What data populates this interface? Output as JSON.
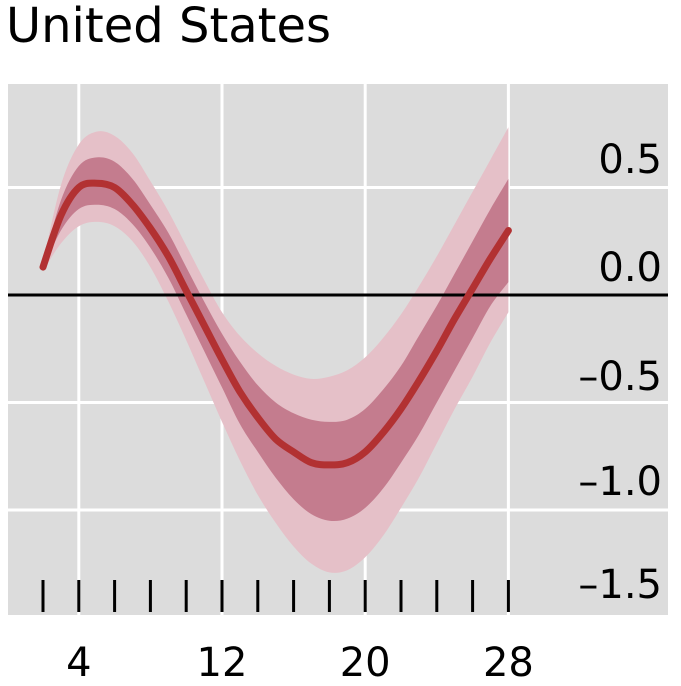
{
  "chart_data": {
    "type": "line",
    "title": "United States",
    "xlabel": "",
    "ylabel": "",
    "xlim": [
      0,
      32
    ],
    "ylim": [
      -1.5,
      0.85
    ],
    "x_ticks": [
      2,
      4,
      6,
      8,
      10,
      12,
      14,
      16,
      18,
      20,
      22,
      24,
      26,
      28
    ],
    "x_tick_labels": [
      {
        "value": 4,
        "label": "4"
      },
      {
        "value": 12,
        "label": "12"
      },
      {
        "value": 20,
        "label": "20"
      },
      {
        "value": 28,
        "label": "28"
      }
    ],
    "y_tick_labels": [
      {
        "value": 0.5,
        "label": "0.5"
      },
      {
        "value": 0.0,
        "label": "0.0"
      },
      {
        "value": -0.5,
        "label": "–0.5"
      },
      {
        "value": -1.0,
        "label": "–1.0"
      },
      {
        "value": -1.5,
        "label": "–1.5"
      }
    ],
    "grid": true,
    "zero_line": true,
    "series": [
      {
        "x": [
          2,
          3,
          4,
          5,
          6,
          7,
          8,
          9,
          10,
          11,
          12,
          13,
          14,
          15,
          16,
          17,
          18,
          19,
          20,
          21,
          22,
          23,
          24,
          25,
          26,
          27,
          28
        ],
        "values": [
          0.13,
          0.37,
          0.5,
          0.52,
          0.5,
          0.42,
          0.31,
          0.18,
          0.02,
          -0.14,
          -0.3,
          -0.45,
          -0.57,
          -0.67,
          -0.73,
          -0.78,
          -0.79,
          -0.78,
          -0.73,
          -0.64,
          -0.53,
          -0.4,
          -0.26,
          -0.11,
          0.03,
          0.17,
          0.3
        ],
        "inner_lower": [
          0.12,
          0.3,
          0.4,
          0.42,
          0.4,
          0.33,
          0.22,
          0.08,
          -0.09,
          -0.26,
          -0.43,
          -0.6,
          -0.73,
          -0.85,
          -0.95,
          -1.02,
          -1.05,
          -1.04,
          -0.99,
          -0.9,
          -0.78,
          -0.65,
          -0.5,
          -0.35,
          -0.2,
          -0.05,
          0.06
        ],
        "inner_upper": [
          0.14,
          0.44,
          0.6,
          0.64,
          0.62,
          0.54,
          0.42,
          0.29,
          0.13,
          -0.03,
          -0.18,
          -0.31,
          -0.42,
          -0.5,
          -0.55,
          -0.58,
          -0.59,
          -0.58,
          -0.53,
          -0.44,
          -0.33,
          -0.19,
          -0.05,
          0.1,
          0.25,
          0.4,
          0.54
        ],
        "outer_lower": [
          0.11,
          0.24,
          0.32,
          0.34,
          0.32,
          0.25,
          0.13,
          -0.03,
          -0.21,
          -0.4,
          -0.59,
          -0.77,
          -0.93,
          -1.06,
          -1.17,
          -1.25,
          -1.29,
          -1.28,
          -1.22,
          -1.12,
          -0.99,
          -0.85,
          -0.69,
          -0.53,
          -0.38,
          -0.22,
          -0.08
        ],
        "outer_upper": [
          0.15,
          0.51,
          0.7,
          0.76,
          0.74,
          0.66,
          0.53,
          0.39,
          0.23,
          0.07,
          -0.08,
          -0.19,
          -0.27,
          -0.33,
          -0.37,
          -0.39,
          -0.38,
          -0.35,
          -0.29,
          -0.2,
          -0.09,
          0.04,
          0.18,
          0.33,
          0.48,
          0.63,
          0.78
        ]
      }
    ]
  },
  "colors": {
    "plot_bg": "#dcdcdc",
    "grid": "#ffffff",
    "zero_line": "#000000",
    "outer_band": "#e5c0c8",
    "inner_band": "#c47c8e",
    "line": "#b23132"
  }
}
